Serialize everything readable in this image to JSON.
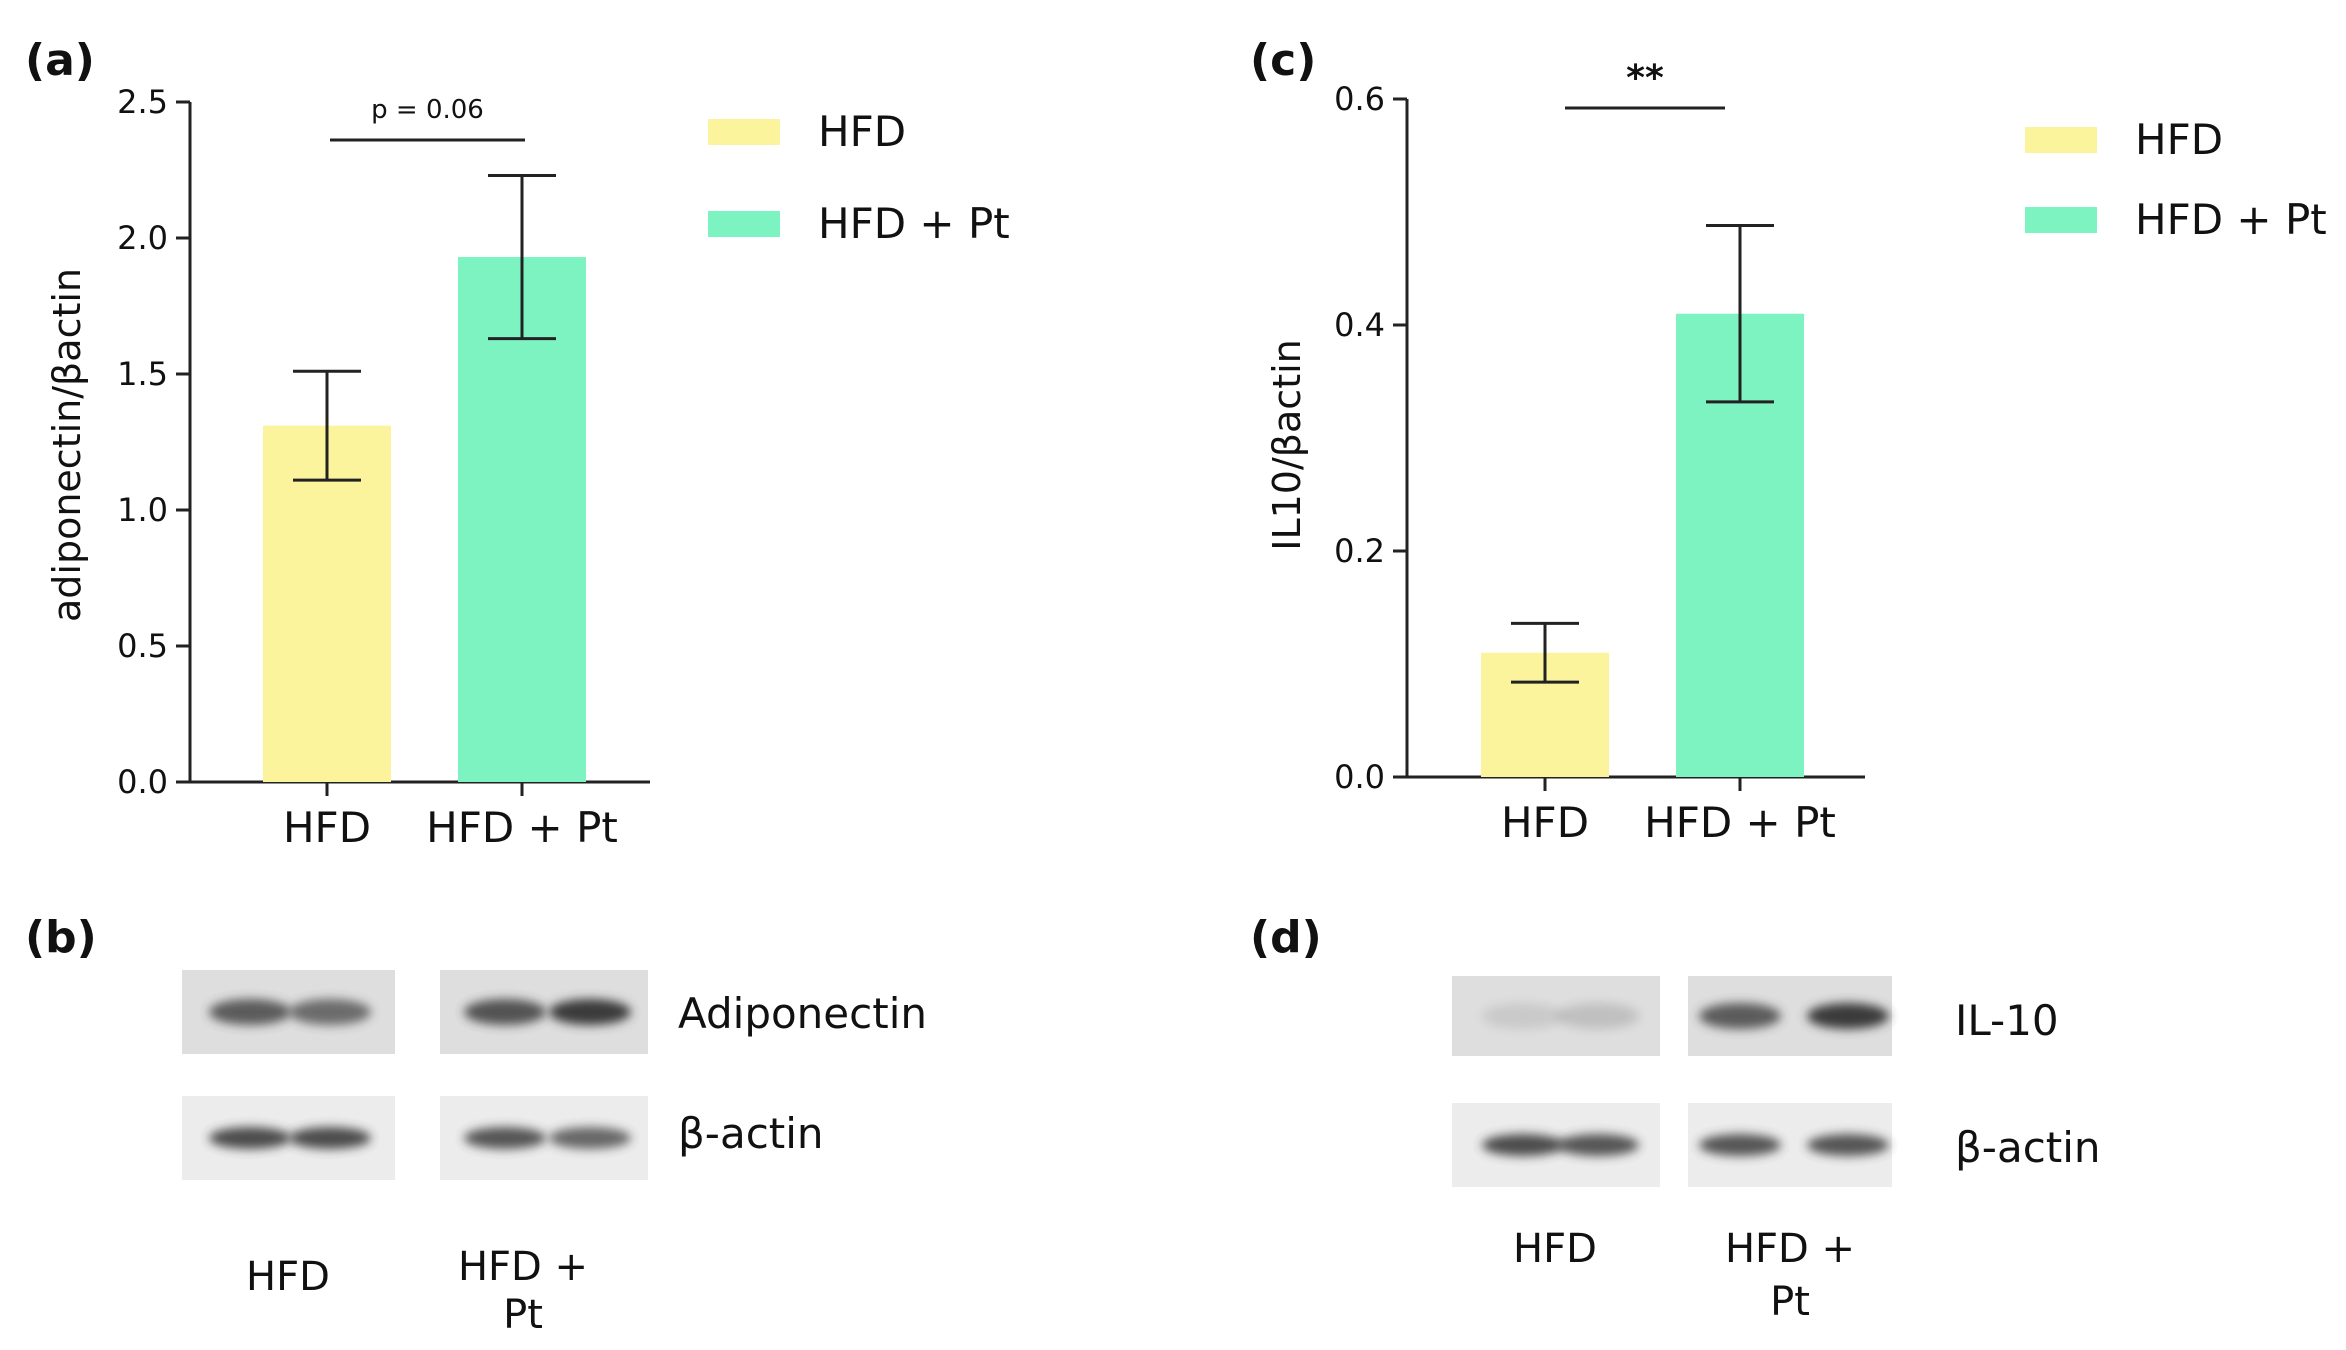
{
  "colors": {
    "HFD": "#FBF49C",
    "HFD + Pt": "#7CF3C0",
    "axis": "#222222",
    "band": "#3a3a3a"
  },
  "legend": [
    {
      "label": "HFD",
      "color": "#FBF49C"
    },
    {
      "label": "HFD + Pt",
      "color": "#7CF3C0"
    }
  ],
  "chart_data": [
    {
      "panel": "(a)",
      "type": "bar",
      "categories": [
        "HFD",
        "HFD + Pt"
      ],
      "values": [
        1.31,
        1.93
      ],
      "errors": [
        0.2,
        0.3
      ],
      "ylabel": "adiponectin/βactin",
      "ylim": [
        0,
        2.5
      ],
      "yticks": [
        "0.0",
        "0.5",
        "1.0",
        "1.5",
        "2.0",
        "2.5"
      ],
      "significance": "p = 0.06",
      "legend_position": "top-right"
    },
    {
      "panel": "(c)",
      "type": "bar",
      "categories": [
        "HFD",
        "HFD + Pt"
      ],
      "values": [
        0.11,
        0.41
      ],
      "errors": [
        0.026,
        0.078
      ],
      "ylabel": "IL10/βactin",
      "ylim": [
        0,
        0.6
      ],
      "yticks": [
        "0.0",
        "0.2",
        "0.4",
        "0.6"
      ],
      "significance": "**",
      "legend_position": "top-right"
    }
  ],
  "blots": [
    {
      "panel": "(b)",
      "rows": [
        {
          "label": "Adiponectin",
          "intensity": [
            0.8,
            0.7,
            0.85,
            1.0
          ]
        },
        {
          "label": "β-actin",
          "intensity": [
            0.9,
            0.9,
            0.85,
            0.75
          ]
        }
      ],
      "groups": [
        "HFD",
        "HFD + Pt"
      ]
    },
    {
      "panel": "(d)",
      "rows": [
        {
          "label": "IL-10",
          "intensity": [
            0.12,
            0.18,
            0.8,
            1.0
          ]
        },
        {
          "label": "β-actin",
          "intensity": [
            0.9,
            0.85,
            0.85,
            0.85
          ]
        }
      ],
      "groups": [
        "HFD",
        "HFD + Pt"
      ]
    }
  ]
}
